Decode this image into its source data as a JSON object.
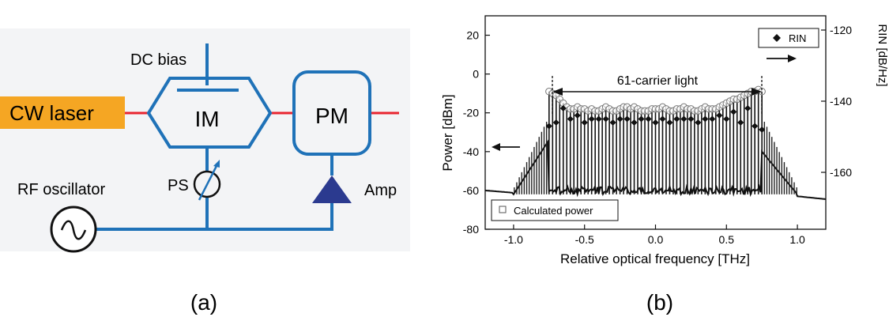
{
  "figure": {
    "panel_a": {
      "caption": "(a)",
      "labels": {
        "dc_bias": "DC bias",
        "cw_laser": "CW laser",
        "im": "IM",
        "pm": "PM",
        "ps": "PS",
        "amp": "Amp",
        "rf_oscillator": "RF oscillator"
      },
      "colors": {
        "block_stroke": "#1f72b8",
        "laser_fill": "#f5a623",
        "fiber": "#e8242f",
        "amp_fill": "#2b3a8f"
      }
    },
    "panel_b": {
      "caption": "(b)",
      "annotation": "61-carrier light",
      "legend_rin": "RIN",
      "legend_calc": "Calculated power"
    }
  },
  "chart_data": {
    "type": "line",
    "xlabel": "Relative optical frequency [THz]",
    "ylabel": "Power [dBm]",
    "y2label": "RIN [dB/Hz]",
    "xlim": [
      -1.2,
      1.2
    ],
    "ylim": [
      -80,
      30
    ],
    "y2lim": [
      -176,
      -116
    ],
    "xticks": [
      "-1.0",
      "-0.5",
      "0.0",
      "0.5",
      "1.0"
    ],
    "xtick_values": [
      -1.0,
      -0.5,
      0.0,
      0.5,
      1.0
    ],
    "yticks": [
      "20",
      "0",
      "-20",
      "-40",
      "-60",
      "-80"
    ],
    "ytick_values": [
      20,
      0,
      -20,
      -40,
      -60,
      -80
    ],
    "y2ticks": [
      "-120",
      "-140",
      "-160"
    ],
    "y2tick_values": [
      -120,
      -140,
      -160
    ],
    "carrier_count": 61,
    "carrier_spacing_thz": 0.025,
    "carrier_span_thz": [
      -0.75,
      0.75
    ],
    "noise_floor_dbm": -60,
    "carrier_peaks_dbm": [
      -9,
      -10,
      -11,
      -13,
      -15,
      -17,
      -18,
      -18,
      -17,
      -18,
      -18,
      -19,
      -18,
      -19,
      -19,
      -18,
      -17,
      -18,
      -19,
      -19,
      -18,
      -17,
      -17,
      -18,
      -17,
      -18,
      -19,
      -19,
      -19,
      -18,
      -18,
      -18,
      -17,
      -18,
      -19,
      -19,
      -18,
      -18,
      -17,
      -18,
      -18,
      -19,
      -19,
      -18,
      -17,
      -18,
      -18,
      -18,
      -17,
      -16,
      -15,
      -14,
      -13,
      -13,
      -12,
      -11,
      -10,
      -9,
      -9,
      -8,
      -9
    ],
    "rin_x_thz": [
      -0.75,
      -0.7,
      -0.65,
      -0.6,
      -0.55,
      -0.5,
      -0.45,
      -0.4,
      -0.35,
      -0.3,
      -0.25,
      -0.2,
      -0.15,
      -0.1,
      -0.05,
      0.0,
      0.05,
      0.1,
      0.15,
      0.2,
      0.25,
      0.3,
      0.35,
      0.4,
      0.45,
      0.5,
      0.55,
      0.6,
      0.65,
      0.7,
      0.75
    ],
    "rin_dbhz": [
      -147,
      -146,
      -142,
      -145,
      -144,
      -146,
      -145,
      -145,
      -145,
      -146,
      -145,
      -145,
      -146,
      -145,
      -145,
      -146,
      -145,
      -146,
      -145,
      -145,
      -145,
      -146,
      -145,
      -145,
      -144,
      -145,
      -143,
      -146,
      -142,
      -147,
      -148
    ],
    "legend": [
      "RIN",
      "Calculated power"
    ],
    "grid": false
  }
}
